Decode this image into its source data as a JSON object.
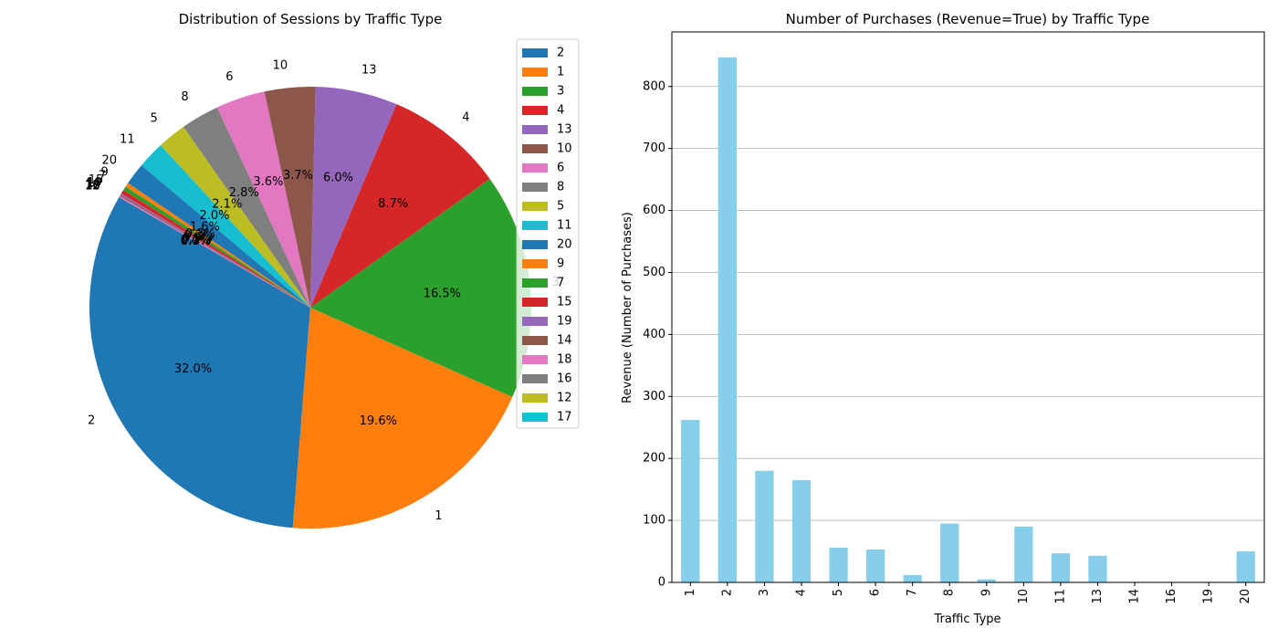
{
  "chart_data": [
    {
      "type": "pie",
      "title": "Distribution of Sessions by Traffic Type",
      "start_angle_deg": 150,
      "direction": "counterclockwise",
      "legend_position": "upper-right",
      "slices": [
        {
          "label": "2",
          "value": 32.0,
          "pct_label": "32.0%",
          "color": "#1f77b4"
        },
        {
          "label": "1",
          "value": 19.6,
          "pct_label": "19.6%",
          "color": "#ff7f0e"
        },
        {
          "label": "3",
          "value": 16.5,
          "pct_label": "16.5%",
          "color": "#2ca02c"
        },
        {
          "label": "4",
          "value": 8.7,
          "pct_label": "8.7%",
          "color": "#d62728"
        },
        {
          "label": "13",
          "value": 6.0,
          "pct_label": "6.0%",
          "color": "#9467bd"
        },
        {
          "label": "10",
          "value": 3.7,
          "pct_label": "3.7%",
          "color": "#8c564b"
        },
        {
          "label": "6",
          "value": 3.6,
          "pct_label": "3.6%",
          "color": "#e377c2"
        },
        {
          "label": "8",
          "value": 2.8,
          "pct_label": "2.8%",
          "color": "#7f7f7f"
        },
        {
          "label": "5",
          "value": 2.1,
          "pct_label": "2.1%",
          "color": "#bcbd22"
        },
        {
          "label": "11",
          "value": 2.0,
          "pct_label": "2.0%",
          "color": "#17becf"
        },
        {
          "label": "20",
          "value": 1.6,
          "pct_label": "1.6%",
          "color": "#1f77b4"
        },
        {
          "label": "9",
          "value": 0.3,
          "pct_label": "0.3%",
          "color": "#ff7f0e"
        },
        {
          "label": "7",
          "value": 0.3,
          "pct_label": "0.3%",
          "color": "#2ca02c"
        },
        {
          "label": "15",
          "value": 0.3,
          "pct_label": "0.3%",
          "color": "#d62728"
        },
        {
          "label": "19",
          "value": 0.1,
          "pct_label": "0.1%",
          "color": "#9467bd"
        },
        {
          "label": "14",
          "value": 0.1,
          "pct_label": "0.1%",
          "color": "#8c564b"
        },
        {
          "label": "18",
          "value": 0.1,
          "pct_label": "0.1%",
          "color": "#e377c2"
        },
        {
          "label": "16",
          "value": 0.0,
          "pct_label": "0.0%",
          "color": "#7f7f7f"
        },
        {
          "label": "12",
          "value": 0.0,
          "pct_label": "0.0%",
          "color": "#bcbd22"
        },
        {
          "label": "17",
          "value": 0.0,
          "pct_label": "0.0%",
          "color": "#17becf"
        }
      ]
    },
    {
      "type": "bar",
      "title": "Number of Purchases (Revenue=True) by Traffic Type",
      "xlabel": "Traffic Type",
      "ylabel": "Revenue (Number of Purchases)",
      "ylim": [
        0,
        888
      ],
      "yticks": [
        0,
        100,
        200,
        300,
        400,
        500,
        600,
        700,
        800
      ],
      "grid": "y-axis",
      "bar_color": "#87ceeb",
      "categories": [
        "1",
        "2",
        "3",
        "4",
        "5",
        "6",
        "7",
        "8",
        "9",
        "10",
        "11",
        "13",
        "14",
        "16",
        "19",
        "20"
      ],
      "values": [
        262,
        847,
        180,
        165,
        56,
        53,
        12,
        95,
        5,
        90,
        47,
        43,
        1,
        1,
        1,
        50
      ]
    }
  ]
}
